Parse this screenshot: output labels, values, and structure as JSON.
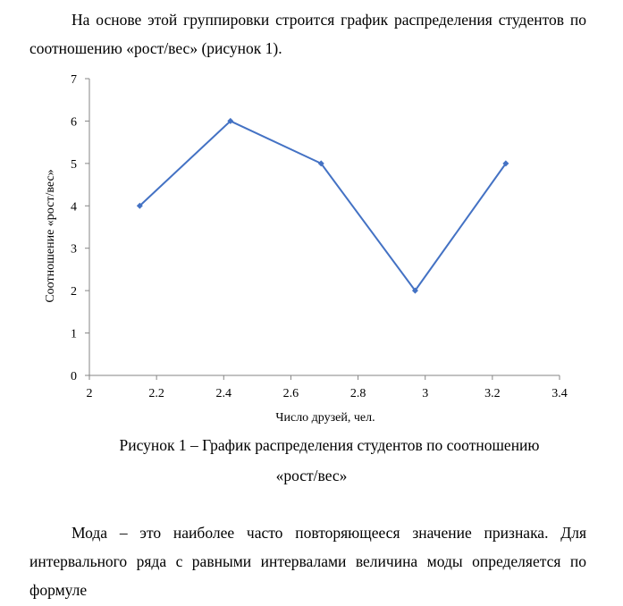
{
  "text": {
    "para1": "На основе этой группировки строится график распределения студентов по соотношению «рост/вес»  (рисунок 1).",
    "caption_line1": "Рисунок 1 – График распределения студентов по соотношению",
    "caption_line2": "«рост/вес»",
    "para2": "Мода – это наиболее часто повторяющееся значение признака. Для интервального ряда с равными интервалами величина моды определяется по формуле"
  },
  "chart_data": {
    "type": "line",
    "title": "",
    "xlabel": "Число друзей, чел.",
    "ylabel": "Соотношение «рост/вес»",
    "xlim": [
      2,
      3.4
    ],
    "ylim": [
      0,
      7
    ],
    "x_ticks": [
      "2",
      "2.2",
      "2.4",
      "2.6",
      "2.8",
      "3",
      "3.2",
      "3.4"
    ],
    "y_ticks": [
      "0",
      "1",
      "2",
      "3",
      "4",
      "5",
      "6",
      "7"
    ],
    "grid": false,
    "legend": "none",
    "color": "#4472C4",
    "series": [
      {
        "x": [
          2.15,
          2.42,
          2.69,
          2.97,
          3.24
        ],
        "y": [
          4,
          6,
          5,
          2,
          5
        ]
      }
    ]
  }
}
